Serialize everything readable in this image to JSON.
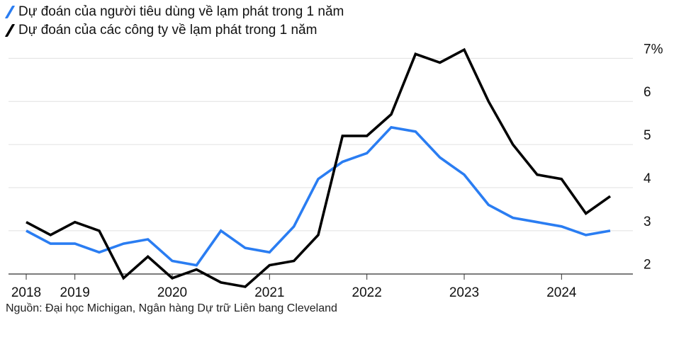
{
  "legend": {
    "consumer_label": "Dự đoán của người tiêu dùng về lạm phát trong 1 năm",
    "business_label": "Dự đoán của các công ty về lạm phát trong 1 năm"
  },
  "source": "Nguồn: Đại học Michigan, Ngân hàng Dự trữ Liên bang Cleveland",
  "colors": {
    "consumer": "#2a7df2",
    "business": "#000000",
    "grid": "#e0e0e0",
    "axis": "#333333"
  },
  "chart_data": {
    "type": "line",
    "title": "",
    "xlabel": "",
    "ylabel": "",
    "x": [
      2018.5,
      2018.75,
      2019.0,
      2019.25,
      2019.5,
      2019.75,
      2020.0,
      2020.25,
      2020.5,
      2020.75,
      2021.0,
      2021.25,
      2021.5,
      2021.75,
      2022.0,
      2022.25,
      2022.5,
      2022.75,
      2023.0,
      2023.25,
      2023.5,
      2023.75,
      2024.0,
      2024.25,
      2024.5
    ],
    "ylim": [
      1.7,
      7.4
    ],
    "y_ticks": [
      2,
      3,
      4,
      5,
      6,
      7
    ],
    "y_tick_labels": [
      "2",
      "3",
      "4",
      "5",
      "6",
      "7%"
    ],
    "x_ticks": [
      2018.5,
      2019.0,
      2020.0,
      2021.0,
      2022.0,
      2023.0,
      2024.0
    ],
    "x_tick_labels": [
      "2018",
      "2019",
      "2020",
      "2021",
      "2022",
      "2023",
      "2024"
    ],
    "grid": true,
    "legend_position": "top-left",
    "series": [
      {
        "name": "Dự đoán của người tiêu dùng về lạm phát trong 1 năm",
        "color_key": "consumer",
        "values": [
          3.0,
          2.7,
          2.7,
          2.5,
          2.7,
          2.8,
          2.3,
          2.2,
          3.0,
          2.6,
          2.5,
          3.1,
          4.2,
          4.6,
          4.8,
          5.4,
          5.3,
          4.7,
          4.3,
          3.6,
          3.3,
          3.2,
          3.1,
          2.9,
          3.0
        ]
      },
      {
        "name": "Dự đoán của các công ty về lạm phát trong 1 năm",
        "color_key": "business",
        "values": [
          3.2,
          2.9,
          3.2,
          3.0,
          1.9,
          2.4,
          1.9,
          2.1,
          1.8,
          1.7,
          2.2,
          2.3,
          2.9,
          5.2,
          5.2,
          5.7,
          7.1,
          6.9,
          7.2,
          6.0,
          5.0,
          4.3,
          4.2,
          3.4,
          3.8
        ]
      }
    ]
  }
}
